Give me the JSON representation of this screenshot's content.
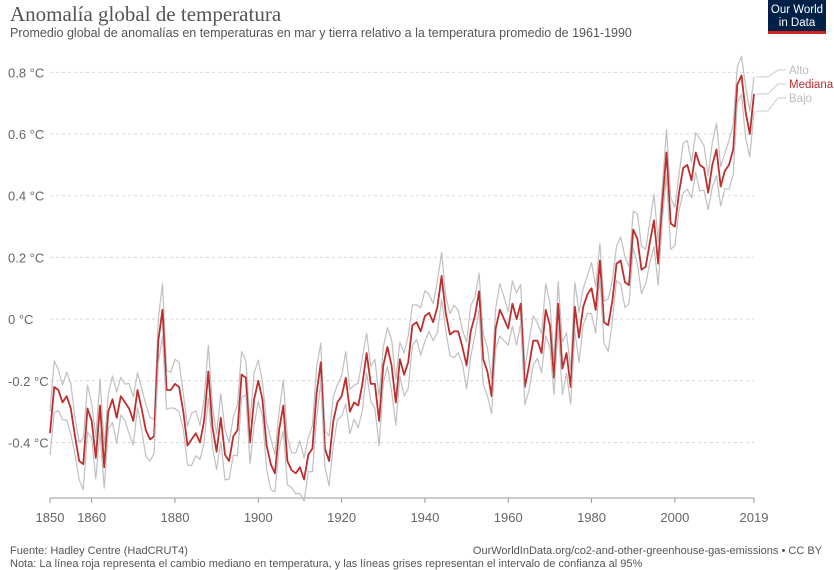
{
  "header": {
    "title": "Anomalía global de temperatura",
    "subtitle": "Promedio global de anomalías en temperaturas en mar y tierra relativo a la temperatura promedio de 1961-1990"
  },
  "logo": {
    "line1": "Our World",
    "line2": "in Data",
    "bg_color": "#002147",
    "accent_color": "#ce261e"
  },
  "footer": {
    "source": "Fuente: Hadley Centre (HadCRUT4)",
    "url": "OurWorldInData.org/co2-and-other-greenhouse-gas-emissions • CC BY",
    "note": "Nota: La línea roja representa el cambio mediano en temperatura, y las líneas grises representan el intervalo de confianza al 95%"
  },
  "chart_data": {
    "type": "line",
    "xlim": [
      1850,
      2019
    ],
    "ylim": [
      -0.58,
      0.84
    ],
    "x_ticks": [
      1850,
      1860,
      1880,
      1900,
      1920,
      1940,
      1960,
      1980,
      2000,
      2019
    ],
    "y_ticks": [
      {
        "value": -0.4,
        "label": "-0.4 °C"
      },
      {
        "value": -0.2,
        "label": "-0.2 °C"
      },
      {
        "value": 0,
        "label": "0 °C"
      },
      {
        "value": 0.2,
        "label": "0.2 °C"
      },
      {
        "value": 0.4,
        "label": "0.4 °C"
      },
      {
        "value": 0.6,
        "label": "0.6 °C"
      },
      {
        "value": 0.8,
        "label": "0.8 °C"
      }
    ],
    "grid": true,
    "legend_position": "right-end",
    "confidence_offset": 0.07,
    "series": [
      {
        "name": "Alto",
        "role": "upper",
        "color": "#c0c0c0"
      },
      {
        "name": "Mediana",
        "role": "median",
        "color": "#be2e2e"
      },
      {
        "name": "Bajo",
        "role": "lower",
        "color": "#c0c0c0"
      }
    ],
    "years_start": 1850,
    "median": [
      -0.37,
      -0.22,
      -0.23,
      -0.27,
      -0.25,
      -0.29,
      -0.38,
      -0.46,
      -0.47,
      -0.29,
      -0.33,
      -0.45,
      -0.28,
      -0.48,
      -0.3,
      -0.26,
      -0.32,
      -0.25,
      -0.27,
      -0.29,
      -0.33,
      -0.23,
      -0.29,
      -0.36,
      -0.39,
      -0.38,
      -0.07,
      0.03,
      -0.23,
      -0.23,
      -0.21,
      -0.22,
      -0.3,
      -0.41,
      -0.39,
      -0.37,
      -0.4,
      -0.33,
      -0.17,
      -0.35,
      -0.43,
      -0.32,
      -0.44,
      -0.46,
      -0.38,
      -0.36,
      -0.18,
      -0.19,
      -0.4,
      -0.26,
      -0.2,
      -0.26,
      -0.41,
      -0.47,
      -0.5,
      -0.36,
      -0.28,
      -0.46,
      -0.49,
      -0.5,
      -0.48,
      -0.52,
      -0.44,
      -0.42,
      -0.24,
      -0.14,
      -0.42,
      -0.46,
      -0.33,
      -0.27,
      -0.25,
      -0.19,
      -0.3,
      -0.27,
      -0.28,
      -0.21,
      -0.11,
      -0.21,
      -0.21,
      -0.33,
      -0.15,
      -0.09,
      -0.15,
      -0.27,
      -0.13,
      -0.18,
      -0.14,
      -0.02,
      -0.01,
      -0.04,
      0.01,
      0.02,
      -0.01,
      0.04,
      0.14,
      0.02,
      -0.05,
      -0.04,
      -0.04,
      -0.09,
      -0.15,
      -0.04,
      0.01,
      0.09,
      -0.13,
      -0.17,
      -0.25,
      -0.03,
      0.03,
      0.0,
      -0.03,
      0.05,
      0.0,
      0.05,
      -0.22,
      -0.15,
      -0.07,
      -0.07,
      -0.11,
      0.03,
      -0.02,
      -0.19,
      0.05,
      -0.16,
      -0.11,
      -0.22,
      0.04,
      -0.06,
      0.04,
      0.08,
      0.1,
      0.03,
      0.19,
      -0.01,
      -0.02,
      0.06,
      0.18,
      0.19,
      0.12,
      0.11,
      0.29,
      0.26,
      0.16,
      0.17,
      0.25,
      0.32,
      0.18,
      0.38,
      0.54,
      0.31,
      0.3,
      0.41,
      0.49,
      0.5,
      0.45,
      0.54,
      0.5,
      0.49,
      0.41,
      0.5,
      0.55,
      0.43,
      0.48,
      0.5,
      0.55,
      0.76,
      0.79,
      0.67,
      0.6,
      0.73
    ]
  },
  "legend": {
    "upper": "Alto",
    "median": "Mediana",
    "lower": "Bajo"
  }
}
